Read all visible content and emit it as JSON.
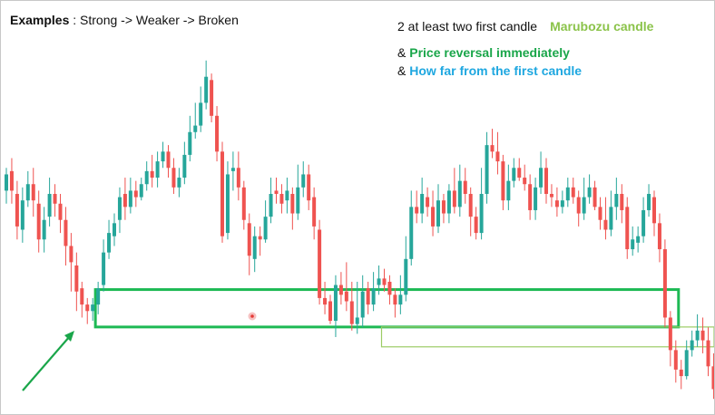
{
  "annotations": {
    "title_bold": "Examples",
    "title_rest": " : Strong -> Weaker -> Broken",
    "line1_text": "2 at least two first candle",
    "line1_highlight": "Marubozu candle",
    "line2_prefix": "& ",
    "line2_highlight": "Price reversal immediately",
    "line3_prefix": "& ",
    "line3_highlight": "How far from the first candle"
  },
  "colors": {
    "bull": "#26a69a",
    "bear": "#ef5350",
    "zone_strong": "#1db954",
    "zone_weak": "#9ccc65",
    "highlight_marubozu": "#8bc34a",
    "highlight_reversal": "#1aa64a",
    "highlight_distance": "#1ea7e0",
    "arrow": "#1aa64a",
    "marker": "#e53935"
  },
  "chart_data": {
    "type": "candlestick",
    "price_range": [
      0,
      100
    ],
    "candles": [
      [
        59,
        64,
        66,
        55
      ],
      [
        65,
        59,
        69,
        55
      ],
      [
        58,
        48,
        62,
        44
      ],
      [
        47,
        56,
        60,
        43
      ],
      [
        56,
        61,
        65,
        54
      ],
      [
        61,
        56,
        66,
        51
      ],
      [
        55,
        44,
        59,
        40
      ],
      [
        44,
        50,
        54,
        40
      ],
      [
        51,
        58,
        63,
        48
      ],
      [
        58,
        55,
        61,
        51
      ],
      [
        55,
        50,
        58,
        46
      ],
      [
        50,
        42,
        54,
        36
      ],
      [
        42,
        37,
        46,
        28
      ],
      [
        36,
        28,
        40,
        22
      ],
      [
        29,
        24,
        31,
        20
      ],
      [
        24,
        22,
        26,
        18
      ],
      [
        22,
        24,
        26,
        19
      ],
      [
        24,
        29,
        31,
        21
      ],
      [
        30,
        40,
        44,
        28
      ],
      [
        40,
        46,
        50,
        38
      ],
      [
        45,
        49,
        52,
        42
      ],
      [
        50,
        57,
        60,
        46
      ],
      [
        58,
        54,
        63,
        50
      ],
      [
        54,
        59,
        63,
        52
      ],
      [
        59,
        57,
        62,
        54
      ],
      [
        57,
        61,
        63,
        56
      ],
      [
        61,
        65,
        68,
        59
      ],
      [
        65,
        63,
        70,
        60
      ],
      [
        63,
        68,
        71,
        60
      ],
      [
        68,
        71,
        74,
        66
      ],
      [
        71,
        66,
        73,
        63
      ],
      [
        66,
        60,
        69,
        58
      ],
      [
        60,
        63,
        66,
        57
      ],
      [
        63,
        70,
        74,
        61
      ],
      [
        70,
        77,
        82,
        68
      ],
      [
        77,
        79,
        86,
        75
      ],
      [
        79,
        86,
        91,
        77
      ],
      [
        86,
        94,
        99,
        84
      ],
      [
        93,
        82,
        95,
        80
      ],
      [
        82,
        71,
        85,
        68
      ],
      [
        71,
        45,
        74,
        43
      ],
      [
        46,
        64,
        68,
        44
      ],
      [
        65,
        66,
        71,
        59
      ],
      [
        66,
        60,
        71,
        56
      ],
      [
        60,
        50,
        62,
        47
      ],
      [
        49,
        39,
        52,
        33
      ],
      [
        38,
        45,
        48,
        34
      ],
      [
        45,
        44,
        48,
        39
      ],
      [
        44,
        51,
        56,
        43
      ],
      [
        51,
        58,
        63,
        49
      ],
      [
        59,
        58,
        63,
        55
      ],
      [
        58,
        55,
        61,
        52
      ],
      [
        56,
        59,
        63,
        52
      ],
      [
        58,
        52,
        60,
        47
      ],
      [
        52,
        60,
        67,
        50
      ],
      [
        60,
        64,
        68,
        57
      ],
      [
        64,
        56,
        67,
        53
      ],
      [
        57,
        48,
        60,
        44
      ],
      [
        47,
        26,
        50,
        24
      ],
      [
        26,
        24,
        31,
        21
      ],
      [
        25,
        19,
        27,
        18
      ],
      [
        19,
        30,
        33,
        14
      ],
      [
        30,
        27,
        34,
        24
      ],
      [
        28,
        25,
        37,
        22
      ],
      [
        25,
        18,
        31,
        16
      ],
      [
        18,
        20,
        31,
        15
      ],
      [
        20,
        28,
        33,
        17
      ],
      [
        29,
        24,
        31,
        21
      ],
      [
        24,
        29,
        34,
        22
      ],
      [
        30,
        32,
        36,
        27
      ],
      [
        32,
        30,
        35,
        28
      ],
      [
        31,
        27,
        33,
        24
      ],
      [
        27,
        24,
        29,
        20
      ],
      [
        24,
        27,
        33,
        21
      ],
      [
        27,
        38,
        45,
        25
      ],
      [
        38,
        54,
        59,
        36
      ],
      [
        54,
        52,
        59,
        49
      ],
      [
        52,
        58,
        63,
        49
      ],
      [
        57,
        54,
        60,
        51
      ],
      [
        54,
        48,
        59,
        45
      ],
      [
        48,
        56,
        61,
        46
      ],
      [
        56,
        52,
        58,
        49
      ],
      [
        52,
        59,
        61,
        49
      ],
      [
        59,
        54,
        66,
        52
      ],
      [
        54,
        62,
        67,
        51
      ],
      [
        62,
        58,
        66,
        55
      ],
      [
        58,
        51,
        60,
        45
      ],
      [
        51,
        46,
        54,
        44
      ],
      [
        46,
        58,
        66,
        44
      ],
      [
        58,
        73,
        77,
        55
      ],
      [
        73,
        71,
        78,
        69
      ],
      [
        71,
        68,
        77,
        64
      ],
      [
        68,
        56,
        70,
        53
      ],
      [
        56,
        62,
        67,
        53
      ],
      [
        62,
        66,
        69,
        60
      ],
      [
        66,
        63,
        69,
        62
      ],
      [
        63,
        61,
        67,
        59
      ],
      [
        61,
        53,
        64,
        50
      ],
      [
        53,
        60,
        63,
        50
      ],
      [
        60,
        66,
        71,
        58
      ],
      [
        66,
        58,
        69,
        55
      ],
      [
        58,
        57,
        61,
        54
      ],
      [
        56,
        54,
        60,
        51
      ],
      [
        54,
        56,
        59,
        52
      ],
      [
        56,
        60,
        63,
        54
      ],
      [
        60,
        57,
        63,
        55
      ],
      [
        57,
        52,
        59,
        48
      ],
      [
        52,
        57,
        63,
        50
      ],
      [
        57,
        60,
        64,
        55
      ],
      [
        60,
        54,
        62,
        53
      ],
      [
        54,
        50,
        57,
        47
      ],
      [
        50,
        47,
        57,
        44
      ],
      [
        47,
        54,
        59,
        45
      ],
      [
        54,
        58,
        63,
        50
      ],
      [
        58,
        53,
        61,
        49
      ],
      [
        54,
        41,
        57,
        38
      ],
      [
        41,
        44,
        48,
        39
      ],
      [
        43,
        45,
        48,
        40
      ],
      [
        45,
        53,
        57,
        43
      ],
      [
        53,
        58,
        61,
        51
      ],
      [
        57,
        49,
        59,
        45
      ],
      [
        49,
        41,
        52,
        37
      ],
      [
        41,
        20,
        44,
        17
      ],
      [
        20,
        10,
        22,
        5
      ],
      [
        10,
        4,
        13,
        0
      ],
      [
        4,
        2,
        7,
        -2
      ],
      [
        2,
        10,
        13,
        1
      ],
      [
        10,
        13,
        16,
        8
      ],
      [
        13,
        16,
        21,
        11
      ],
      [
        16,
        13,
        20,
        9
      ],
      [
        13,
        5,
        17,
        2
      ],
      [
        5,
        -2,
        9,
        -5
      ],
      [
        -2,
        2,
        4,
        -6
      ]
    ],
    "zones": [
      {
        "top": 28.6,
        "bottom": 17.1,
        "start_index": 17,
        "end_index": 124
      },
      {
        "top": 17.1,
        "bottom": 11.0,
        "start_index": 70,
        "end_index": 137
      }
    ]
  }
}
